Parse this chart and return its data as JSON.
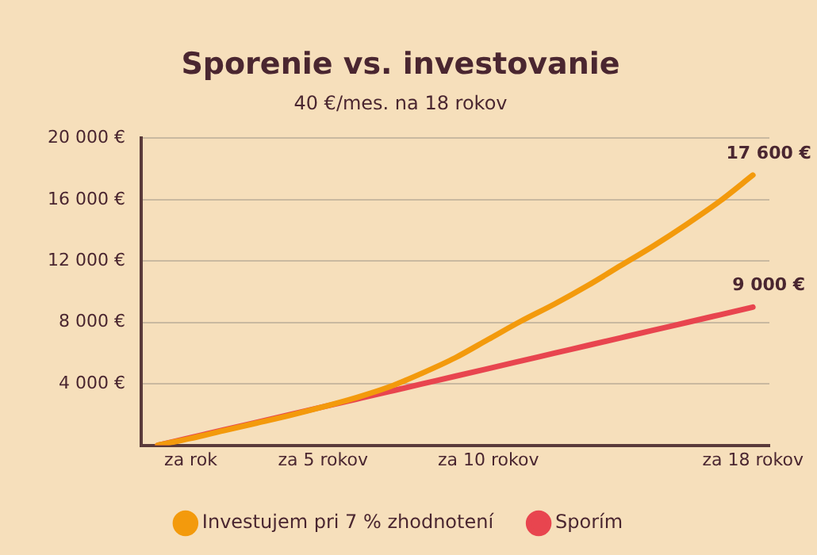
{
  "chart_data": {
    "type": "line",
    "title": "Sporenie vs. investovanie",
    "subtitle": "40 €/mes. na 18 rokov",
    "categories": [
      null,
      "za rok",
      null,
      null,
      null,
      "za 5 rokov",
      null,
      null,
      null,
      null,
      "za 10 rokov",
      null,
      null,
      null,
      null,
      null,
      null,
      null,
      "za 18 rokov"
    ],
    "ylim": [
      0,
      20000
    ],
    "yticks": [
      {
        "value": 4000,
        "label": "4 000 €"
      },
      {
        "value": 8000,
        "label": "8 000 €"
      },
      {
        "value": 12000,
        "label": "12 000 €"
      },
      {
        "value": 16000,
        "label": "16 000 €"
      },
      {
        "value": 20000,
        "label": "20 000 €"
      }
    ],
    "grid": "y",
    "legend": "bottom",
    "marker": "none",
    "line_style": "solid",
    "series": [
      {
        "name": "Investujem pri 7 % zhodnotení",
        "color": "#f39a0c",
        "values": [
          0,
          450,
          950,
          1450,
          1950,
          2500,
          3100,
          3800,
          4700,
          5700,
          6900,
          8100,
          9200,
          10400,
          11700,
          13000,
          14400,
          15900,
          17600
        ],
        "value_labels": [
          null,
          null,
          null,
          null,
          null,
          null,
          null,
          null,
          null,
          null,
          null,
          null,
          null,
          null,
          null,
          null,
          null,
          null,
          "17 600 €"
        ]
      },
      {
        "name": "Sporím",
        "color": "#e8454f",
        "values": [
          0,
          500,
          1000,
          1500,
          2000,
          2500,
          3000,
          3500,
          4000,
          4500,
          5000,
          5500,
          6000,
          6500,
          7000,
          7500,
          8000,
          8500,
          9000
        ],
        "value_labels": [
          null,
          null,
          null,
          null,
          null,
          null,
          null,
          null,
          null,
          null,
          null,
          null,
          null,
          null,
          null,
          null,
          null,
          null,
          "9 000 €"
        ]
      }
    ]
  }
}
